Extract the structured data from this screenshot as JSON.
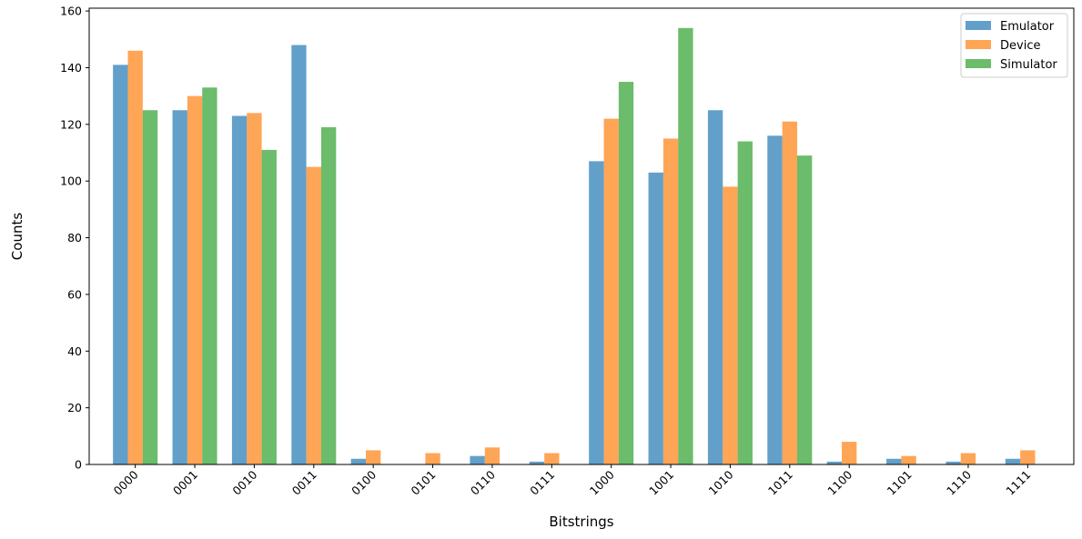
{
  "chart_data": {
    "type": "bar",
    "title": "",
    "xlabel": "Bitstrings",
    "ylabel": "Counts",
    "ylim": [
      0,
      161
    ],
    "yticks": [
      0,
      20,
      40,
      60,
      80,
      100,
      120,
      140,
      160
    ],
    "grid": false,
    "legend_position": "top-right",
    "categories": [
      "0000",
      "0001",
      "0010",
      "0011",
      "0100",
      "0101",
      "0110",
      "0111",
      "1000",
      "1001",
      "1010",
      "1011",
      "1100",
      "1101",
      "1110",
      "1111"
    ],
    "series": [
      {
        "name": "Emulator",
        "color": "#1f77b4",
        "opacity": 0.7,
        "values": [
          141,
          125,
          123,
          148,
          2,
          0,
          3,
          1,
          107,
          103,
          125,
          116,
          1,
          2,
          1,
          2
        ]
      },
      {
        "name": "Device",
        "color": "#ff7f0e",
        "opacity": 0.7,
        "values": [
          146,
          130,
          124,
          105,
          5,
          4,
          6,
          4,
          122,
          115,
          98,
          121,
          8,
          3,
          4,
          5
        ]
      },
      {
        "name": "Simulator",
        "color": "#2ca02c",
        "opacity": 0.7,
        "values": [
          125,
          133,
          111,
          119,
          0,
          0,
          0,
          0,
          135,
          154,
          114,
          109,
          0,
          0,
          0,
          0
        ]
      }
    ]
  }
}
